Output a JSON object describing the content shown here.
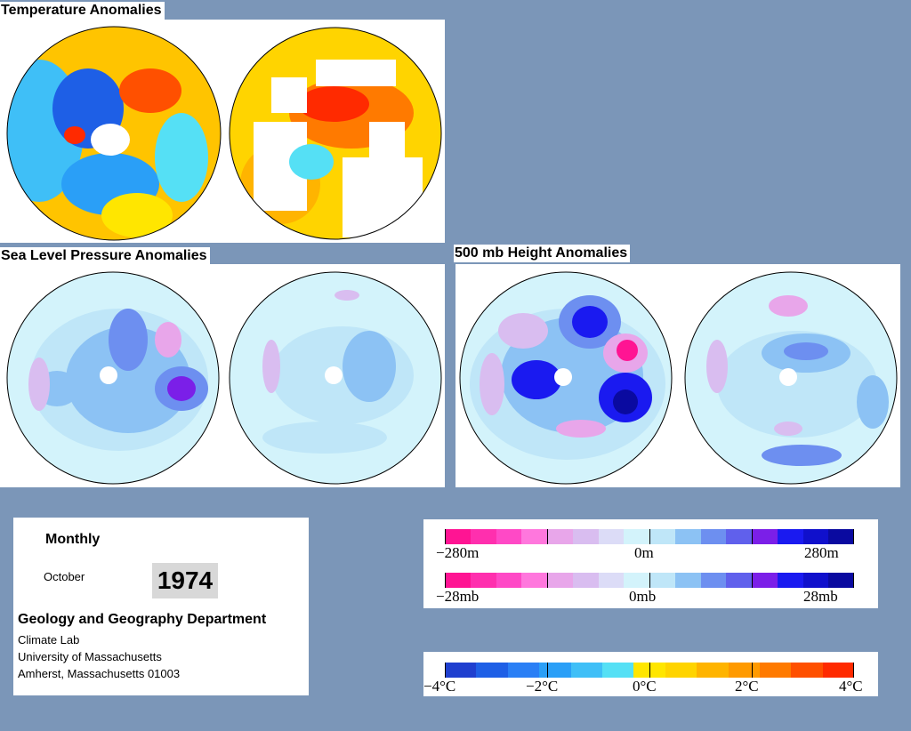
{
  "sections": {
    "temperature": "Temperature Anomalies",
    "slp": "Sea Level Pressure Anomalies",
    "height500": "500 mb Height Anomalies"
  },
  "info": {
    "period": "Monthly",
    "month": "October",
    "year": "1974",
    "department": "Geology and Geography Department",
    "lab": "Climate Lab",
    "university": "University of Massachusetts",
    "address": "Amherst, Massachusetts 01003"
  },
  "legends": {
    "height": {
      "min": "−280m",
      "mid": "0m",
      "max": "280m"
    },
    "pressure": {
      "min": "−28mb",
      "mid": "0mb",
      "max": "28mb"
    },
    "temp": {
      "l1": "−4°C",
      "l2": "−2°C",
      "l3": "0°C",
      "l4": "2°C",
      "l5": "4°C"
    }
  },
  "colors": {
    "background": "#7b96b8",
    "anomaly_scale": [
      "#ff1493",
      "#ff2fae",
      "#ff49c6",
      "#ff77dd",
      "#e8a6ea",
      "#d9bdf0",
      "#dcdcf7",
      "#d3f3fb",
      "#bfe6f8",
      "#8cc2f4",
      "#6d8ff0",
      "#6060ec",
      "#7b1fe8",
      "#1a1af0",
      "#1010cc",
      "#0a0aa0"
    ],
    "temp_scale": [
      "#1f3fcf",
      "#1e5fe6",
      "#2a7ff5",
      "#2a9ff7",
      "#3fbff7",
      "#55e0f5",
      "#ffe600",
      "#ffd400",
      "#ffb400",
      "#ff9a00",
      "#ff7a00",
      "#ff5000",
      "#ff2a00"
    ]
  }
}
